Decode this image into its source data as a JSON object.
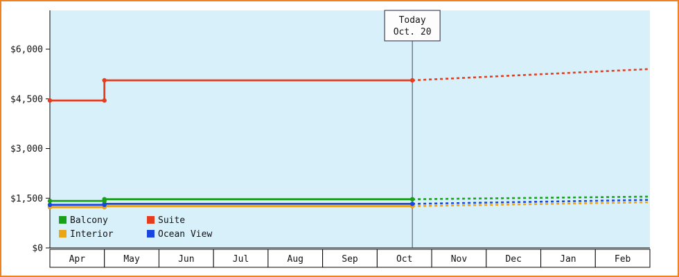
{
  "frame": {
    "border_color": "#ef8220",
    "background": "#ffffff"
  },
  "chart_data": {
    "type": "line",
    "title": "",
    "plot_bg": "#d8f0fa",
    "ylim": [
      0,
      6000
    ],
    "y_ticks": [
      {
        "value": 0,
        "label": "$0"
      },
      {
        "value": 1500,
        "label": "$1,500"
      },
      {
        "value": 3000,
        "label": "$3,000"
      },
      {
        "value": 4500,
        "label": "$4,500"
      },
      {
        "value": 6000,
        "label": "$6,000"
      }
    ],
    "x_months": [
      "Apr",
      "May",
      "Jun",
      "Jul",
      "Aug",
      "Sep",
      "Oct",
      "Nov",
      "Dec",
      "Jan",
      "Feb"
    ],
    "today": {
      "line1": "Today",
      "line2": "Oct. 20",
      "month_index": 6,
      "day_fraction": 0.645
    },
    "series": [
      {
        "name": "Interior",
        "color": "#eaa617",
        "solid": [
          [
            0,
            1230
          ],
          [
            1,
            1230
          ],
          [
            1,
            1260
          ],
          [
            6.645,
            1260
          ]
        ],
        "dashed": [
          [
            6.645,
            1260
          ],
          [
            11,
            1380
          ]
        ]
      },
      {
        "name": "Ocean View",
        "color": "#1a46e0",
        "solid": [
          [
            0,
            1300
          ],
          [
            1,
            1300
          ],
          [
            1,
            1330
          ],
          [
            6.645,
            1330
          ]
        ],
        "dashed": [
          [
            6.645,
            1330
          ],
          [
            11,
            1450
          ]
        ]
      },
      {
        "name": "Balcony",
        "color": "#18a018",
        "solid": [
          [
            0,
            1420
          ],
          [
            1,
            1420
          ],
          [
            1,
            1470
          ],
          [
            6.645,
            1470
          ]
        ],
        "dashed": [
          [
            6.645,
            1470
          ],
          [
            11,
            1550
          ]
        ]
      },
      {
        "name": "Suite",
        "color": "#e63c1e",
        "solid": [
          [
            0,
            4450
          ],
          [
            1,
            4450
          ],
          [
            1,
            5060
          ],
          [
            6.645,
            5060
          ]
        ],
        "dashed": [
          [
            6.645,
            5060
          ],
          [
            11,
            5400
          ]
        ]
      }
    ],
    "legend": {
      "items": [
        "Balcony",
        "Suite",
        "Interior",
        "Ocean View"
      ]
    }
  }
}
